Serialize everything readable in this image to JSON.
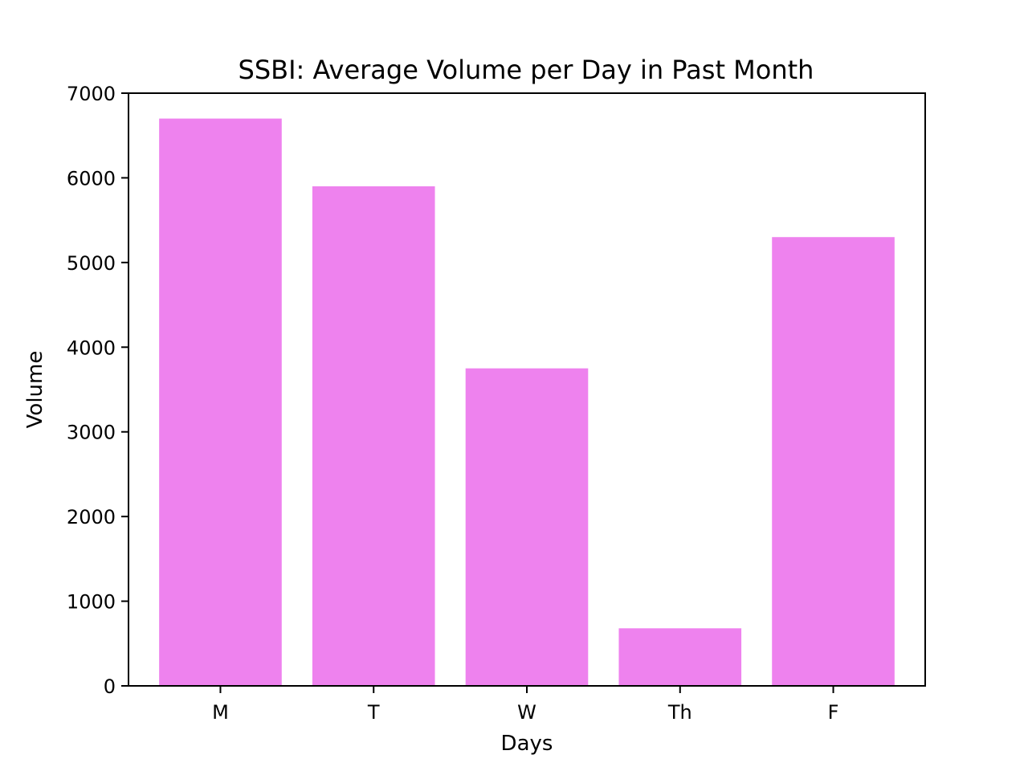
{
  "chart_data": {
    "type": "bar",
    "title": "SSBI: Average Volume per Day in Past Month",
    "xlabel": "Days",
    "ylabel": "Volume",
    "categories": [
      "M",
      "T",
      "W",
      "Th",
      "F"
    ],
    "values": [
      6700,
      5900,
      3750,
      680,
      5300
    ],
    "ylim": [
      0,
      7000
    ],
    "yticks": [
      0,
      1000,
      2000,
      3000,
      4000,
      5000,
      6000,
      7000
    ],
    "ytick_labels": [
      "0",
      "1000",
      "2000",
      "3000",
      "4000",
      "5000",
      "6000",
      "7000"
    ],
    "bar_color": "#ee82ee",
    "grid": false,
    "legend": false
  }
}
